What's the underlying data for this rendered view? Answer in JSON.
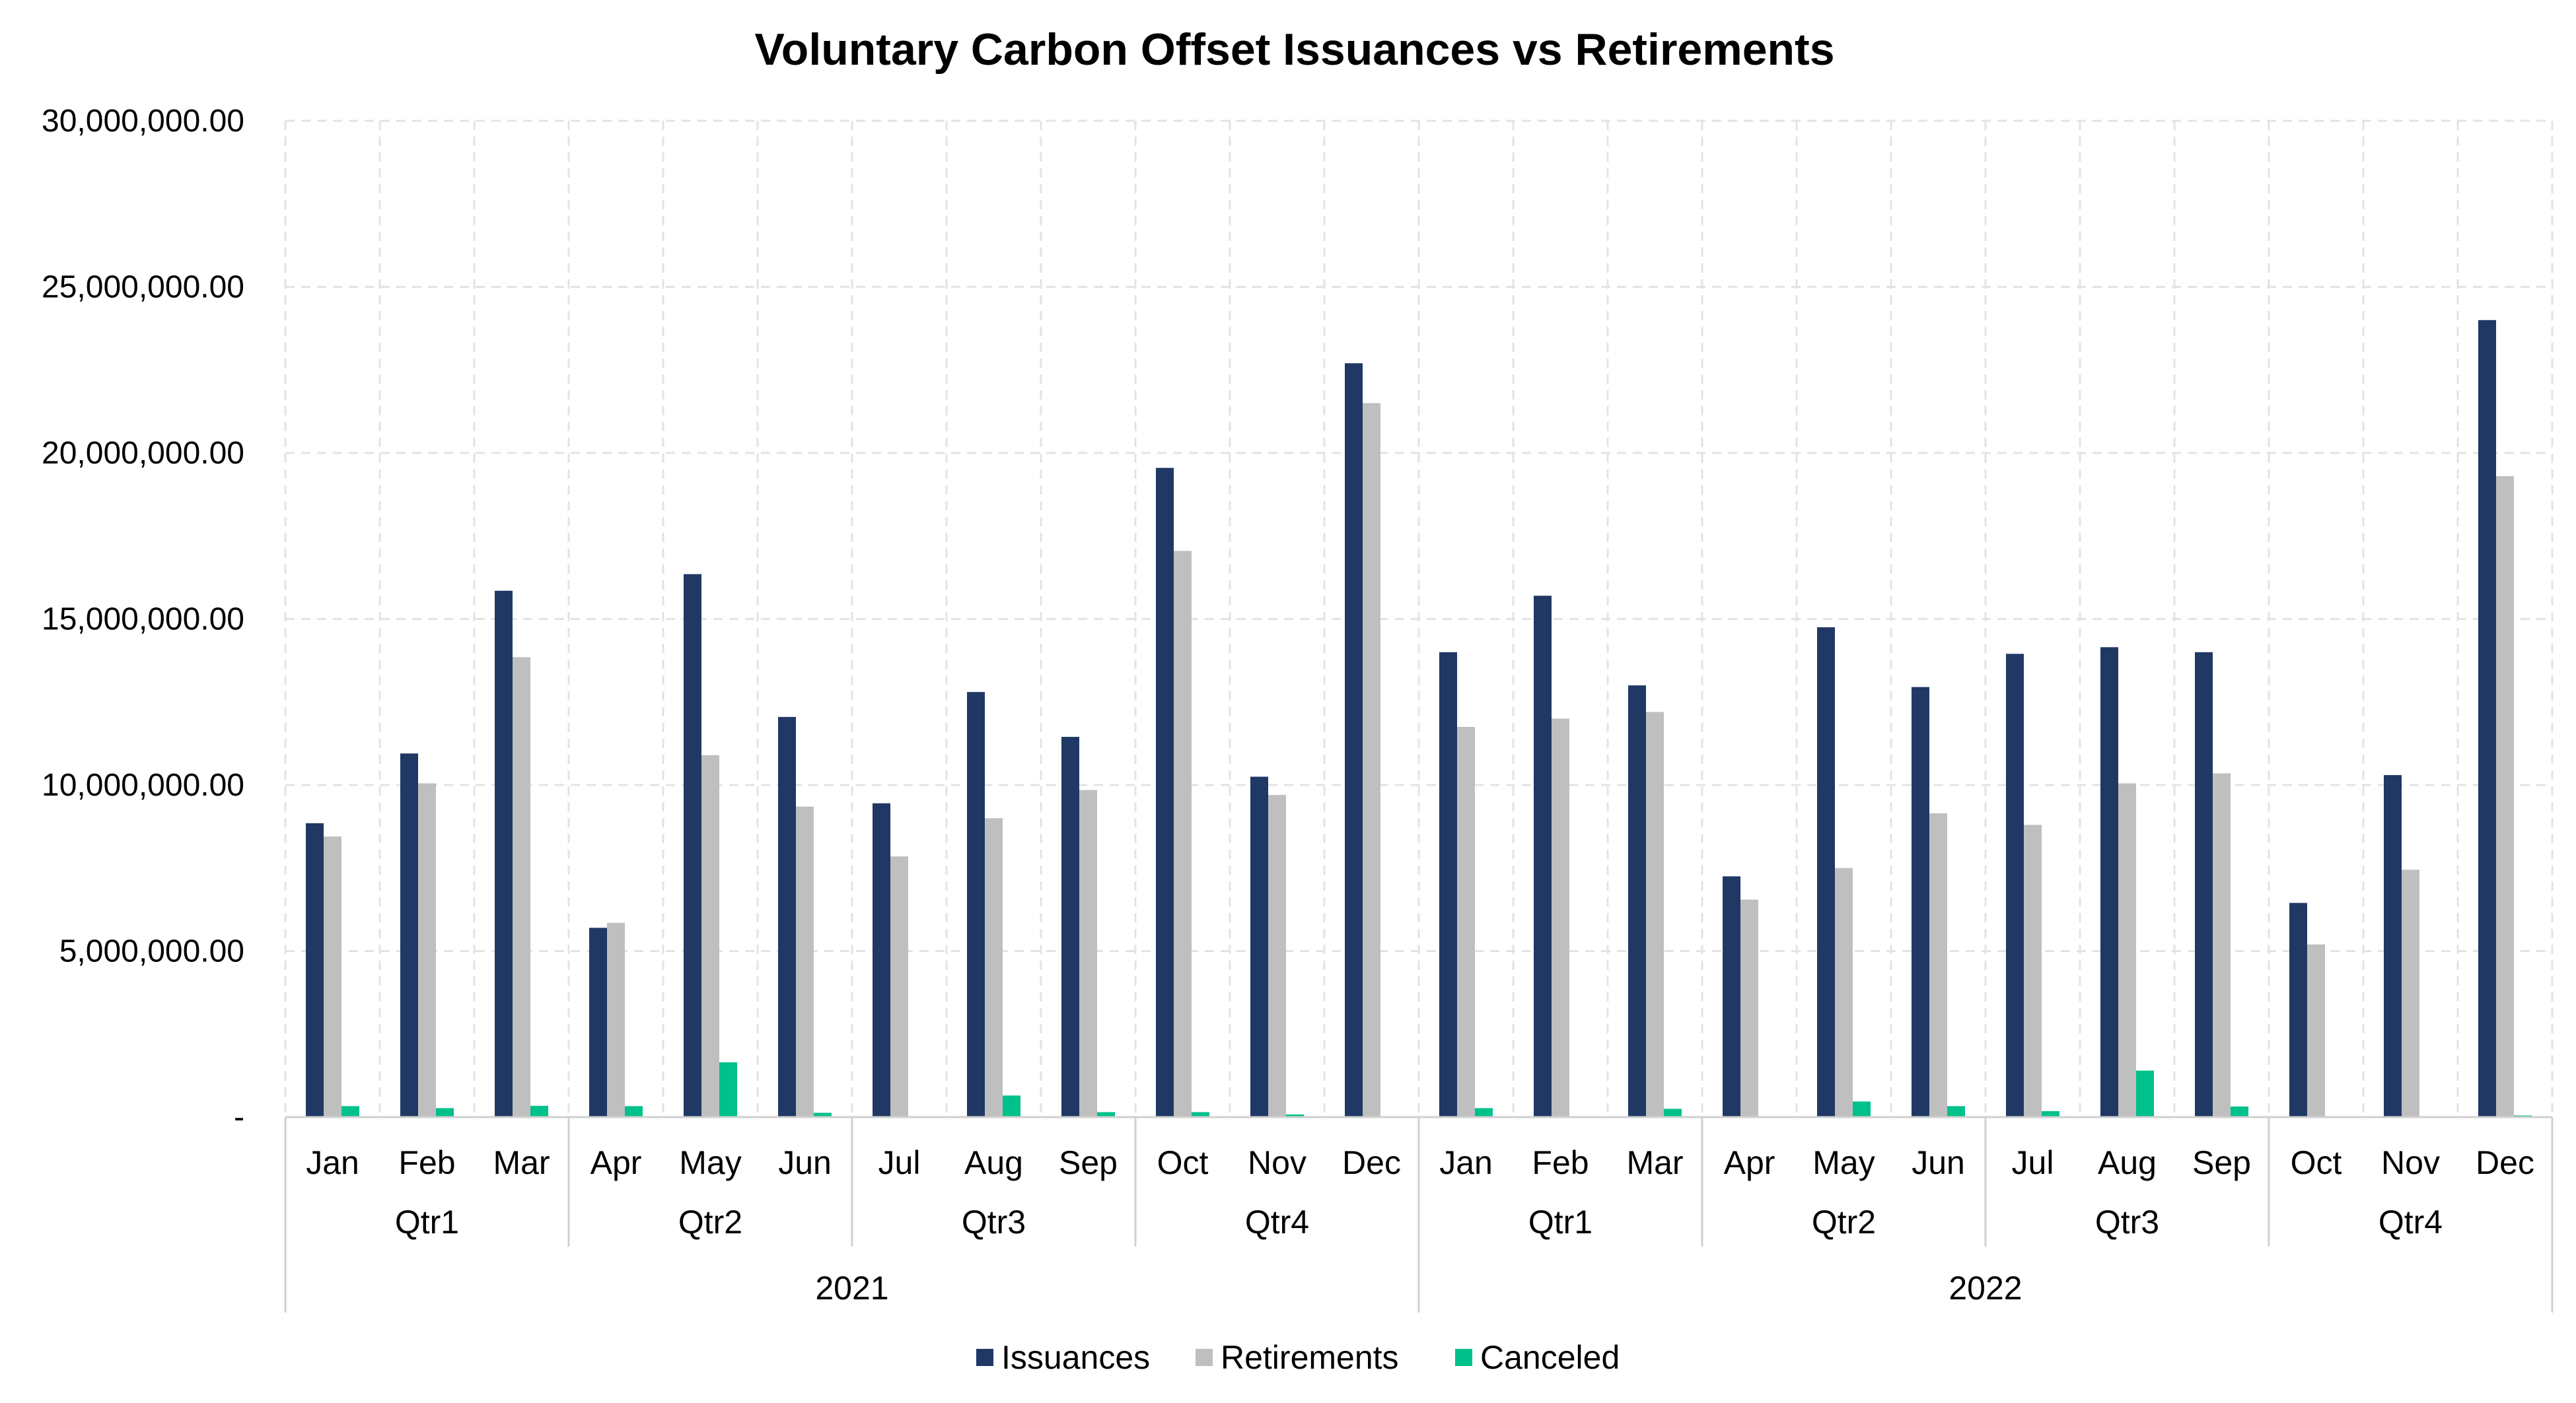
{
  "chart_data": {
    "type": "bar",
    "title": "Voluntary Carbon Offset Issuances vs Retirements",
    "xlabel": "",
    "ylabel": "",
    "ylim": [
      0,
      30000000
    ],
    "y_ticks": [
      {
        "value": 0,
        "label": "-"
      },
      {
        "value": 5000000,
        "label": "5,000,000.00"
      },
      {
        "value": 10000000,
        "label": "10,000,000.00"
      },
      {
        "value": 15000000,
        "label": "15,000,000.00"
      },
      {
        "value": 20000000,
        "label": "20,000,000.00"
      },
      {
        "value": 25000000,
        "label": "25,000,000.00"
      },
      {
        "value": 30000000,
        "label": "30,000,000.00"
      }
    ],
    "grid": true,
    "legend_position": "bottom",
    "categories": [
      "Jan",
      "Feb",
      "Mar",
      "Apr",
      "May",
      "Jun",
      "Jul",
      "Aug",
      "Sep",
      "Oct",
      "Nov",
      "Dec",
      "Jan",
      "Feb",
      "Mar",
      "Apr",
      "May",
      "Jun",
      "Jul",
      "Aug",
      "Sep",
      "Oct",
      "Nov",
      "Dec"
    ],
    "quarters": [
      {
        "label": "Qtr1",
        "months": 3
      },
      {
        "label": "Qtr2",
        "months": 3
      },
      {
        "label": "Qtr3",
        "months": 3
      },
      {
        "label": "Qtr4",
        "months": 3
      },
      {
        "label": "Qtr1",
        "months": 3
      },
      {
        "label": "Qtr2",
        "months": 3
      },
      {
        "label": "Qtr3",
        "months": 3
      },
      {
        "label": "Qtr4",
        "months": 3
      }
    ],
    "years": [
      {
        "label": "2021",
        "months": 12
      },
      {
        "label": "2022",
        "months": 12
      }
    ],
    "series": [
      {
        "name": "Issuances",
        "color": "#203864",
        "values": [
          8850000,
          10950000,
          15850000,
          5700000,
          16350000,
          12050000,
          9450000,
          12800000,
          11450000,
          19550000,
          10250000,
          22700000,
          14000000,
          15700000,
          13000000,
          7250000,
          14750000,
          12950000,
          13950000,
          14150000,
          14000000,
          6450000,
          10300000,
          24000000
        ]
      },
      {
        "name": "Retirements",
        "color": "#bfbfbf",
        "values": [
          8450000,
          10050000,
          13850000,
          5850000,
          10900000,
          9350000,
          7850000,
          9000000,
          9850000,
          17050000,
          9700000,
          21500000,
          11750000,
          12000000,
          12200000,
          6550000,
          7500000,
          9150000,
          8800000,
          10050000,
          10350000,
          5200000,
          7450000,
          19300000
        ]
      },
      {
        "name": "Canceled",
        "color": "#00c08b",
        "values": [
          330000,
          270000,
          340000,
          330000,
          1650000,
          130000,
          30000,
          650000,
          150000,
          150000,
          80000,
          0,
          270000,
          0,
          250000,
          20000,
          470000,
          330000,
          180000,
          1400000,
          320000,
          0,
          0,
          50000
        ]
      }
    ]
  }
}
